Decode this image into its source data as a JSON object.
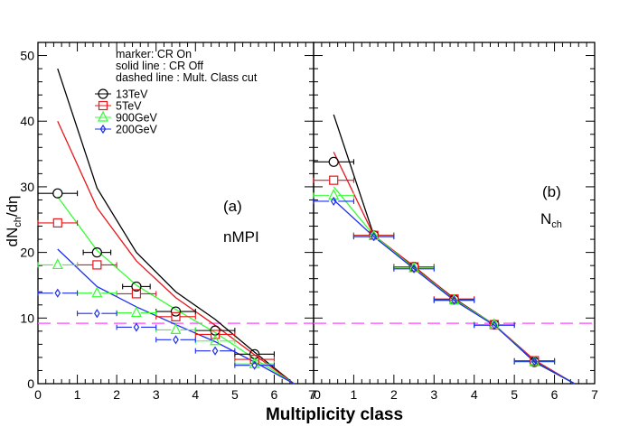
{
  "chart_data": {
    "type": "scatter",
    "xlabel": "Multiplicity class",
    "ylabel": "dN_ch/dη",
    "xlim": [
      0,
      7
    ],
    "ylim": [
      0,
      52
    ],
    "xticks": [
      0,
      1,
      2,
      3,
      4,
      5,
      6,
      7
    ],
    "yticks": [
      0,
      10,
      20,
      30,
      40,
      50
    ],
    "xtick_labels": [
      "0",
      "1",
      "2",
      "3",
      "4",
      "5",
      "6",
      "7"
    ],
    "ytick_labels": [
      "0",
      "10",
      "20",
      "30",
      "40",
      "50"
    ],
    "panel_edge_labels": {
      "left_panel_right_edge": "7",
      "right_panel_left_edge": "0"
    },
    "legend": {
      "position": "top",
      "header_lines": [
        "marker: CR On",
        "solid line : CR Off",
        "dashed line : Mult. Class cut"
      ],
      "entries": [
        {
          "label": "13TeV",
          "marker": "circle",
          "color": "#000000"
        },
        {
          "label": "5TeV",
          "marker": "square",
          "color": "#e8161b"
        },
        {
          "label": "900GeV",
          "marker": "triangle",
          "color": "#33ff33"
        },
        {
          "label": "200GeV",
          "marker": "diamond",
          "color": "#1d2df0"
        }
      ]
    },
    "cut_line": {
      "y": 9.2,
      "color": "#ff66ff",
      "style": "dashed"
    },
    "panels": [
      {
        "name": "nMPI",
        "tag": "(a)",
        "label": "nMPI",
        "series": [
          {
            "name": "13TeV",
            "color": "#000000",
            "marker": "circle",
            "markers": {
              "x": [
                0.5,
                1.5,
                2.5,
                3.5,
                4.5,
                5.5
              ],
              "y": [
                29.0,
                20.0,
                14.8,
                11.0,
                8.1,
                4.5
              ],
              "xerr": [
                0.5,
                0.35,
                0.35,
                0.5,
                0.5,
                0.5
              ]
            },
            "line": {
              "x": [
                0.5,
                1.5,
                2.5,
                3.5,
                4.5,
                5.5,
                6.5
              ],
              "y": [
                48.0,
                29.8,
                20.0,
                14.0,
                9.8,
                4.8,
                0.0
              ]
            }
          },
          {
            "name": "5TeV",
            "color": "#e8161b",
            "marker": "square",
            "markers": {
              "x": [
                0.5,
                1.5,
                2.5,
                3.5,
                4.5,
                5.5
              ],
              "y": [
                24.5,
                18.1,
                13.7,
                10.2,
                7.5,
                3.7
              ],
              "xerr": [
                0.5,
                0.5,
                0.5,
                0.5,
                0.5,
                0.5
              ]
            },
            "line": {
              "x": [
                0.5,
                1.5,
                2.5,
                3.5,
                4.5,
                5.5,
                6.5
              ],
              "y": [
                40.0,
                26.8,
                18.7,
                13.1,
                8.9,
                4.4,
                0.0
              ]
            }
          },
          {
            "name": "900GeV",
            "color": "#33ff33",
            "marker": "triangle",
            "markers": {
              "x": [
                0.5,
                1.5,
                2.5,
                3.5,
                4.5,
                5.5
              ],
              "y": [
                18.1,
                13.8,
                10.8,
                8.2,
                6.5,
                3.0
              ],
              "xerr": [
                0.5,
                0.5,
                0.5,
                0.5,
                0.5,
                0.5
              ]
            },
            "line": {
              "x": [
                0.5,
                1.5,
                2.5,
                3.5,
                4.5,
                5.5,
                6.5
              ],
              "y": [
                28.5,
                20.3,
                15.0,
                11.3,
                7.8,
                3.8,
                0.0
              ]
            }
          },
          {
            "name": "200GeV",
            "color": "#1d2df0",
            "marker": "diamond",
            "markers": {
              "x": [
                0.5,
                1.5,
                2.5,
                3.5,
                4.5,
                5.5
              ],
              "y": [
                13.8,
                10.7,
                8.6,
                6.7,
                5.0,
                2.8
              ],
              "xerr": [
                0.5,
                0.5,
                0.5,
                0.5,
                0.5,
                0.5
              ]
            },
            "line": {
              "x": [
                0.5,
                1.5,
                2.5,
                3.5,
                4.5,
                5.5,
                6.5
              ],
              "y": [
                20.5,
                14.8,
                11.7,
                9.0,
                6.4,
                3.3,
                0.0
              ]
            }
          }
        ]
      },
      {
        "name": "Nch",
        "tag": "(b)",
        "label": "N_ch",
        "series": [
          {
            "name": "13TeV",
            "color": "#000000",
            "marker": "circle",
            "markers": {
              "x": [
                0.5,
                1.5,
                2.5,
                3.5,
                4.5,
                5.5
              ],
              "y": [
                33.8,
                22.6,
                17.8,
                12.8,
                9.0,
                3.3
              ],
              "xerr": [
                0.5,
                0.5,
                0.5,
                0.5,
                0.5,
                0.5
              ]
            },
            "line": {
              "x": [
                0.5,
                1.5,
                2.5,
                3.5,
                4.5,
                5.5,
                6.5
              ],
              "y": [
                41.0,
                22.6,
                17.8,
                13.0,
                9.0,
                3.3,
                0.0
              ]
            }
          },
          {
            "name": "5TeV",
            "color": "#e8161b",
            "marker": "square",
            "markers": {
              "x": [
                0.5,
                1.5,
                2.5,
                3.5,
                4.5,
                5.5
              ],
              "y": [
                31.0,
                22.6,
                17.8,
                12.9,
                9.0,
                3.5
              ],
              "xerr": [
                0.5,
                0.5,
                0.5,
                0.5,
                0.5,
                0.5
              ]
            },
            "line": {
              "x": [
                0.5,
                1.5,
                2.5,
                3.5,
                4.5,
                5.5,
                6.5
              ],
              "y": [
                35.3,
                22.6,
                17.9,
                12.9,
                9.0,
                3.6,
                0.0
              ]
            }
          },
          {
            "name": "900GeV",
            "color": "#33ff33",
            "marker": "triangle",
            "markers": {
              "x": [
                0.5,
                1.5,
                2.5,
                3.5,
                4.5,
                5.5
              ],
              "y": [
                28.7,
                22.5,
                17.6,
                12.7,
                9.0,
                3.3
              ],
              "xerr": [
                0.5,
                0.5,
                0.5,
                0.5,
                0.5,
                0.5
              ]
            },
            "line": {
              "x": [
                0.5,
                1.5,
                2.5,
                3.5,
                4.5,
                5.5,
                6.5
              ],
              "y": [
                30.0,
                22.6,
                17.6,
                12.8,
                9.0,
                3.4,
                0.0
              ]
            }
          },
          {
            "name": "200GeV",
            "color": "#1d2df0",
            "marker": "diamond",
            "markers": {
              "x": [
                0.5,
                1.5,
                2.5,
                3.5,
                4.5,
                5.5
              ],
              "y": [
                27.8,
                22.4,
                17.5,
                12.7,
                8.9,
                3.4
              ],
              "xerr": [
                0.5,
                0.5,
                0.5,
                0.5,
                0.5,
                0.5
              ]
            },
            "line": {
              "x": [
                0.5,
                1.5,
                2.5,
                3.5,
                4.5,
                5.5,
                6.5
              ],
              "y": [
                28.0,
                22.4,
                17.5,
                12.7,
                8.9,
                3.4,
                0.0
              ]
            }
          }
        ]
      }
    ]
  }
}
